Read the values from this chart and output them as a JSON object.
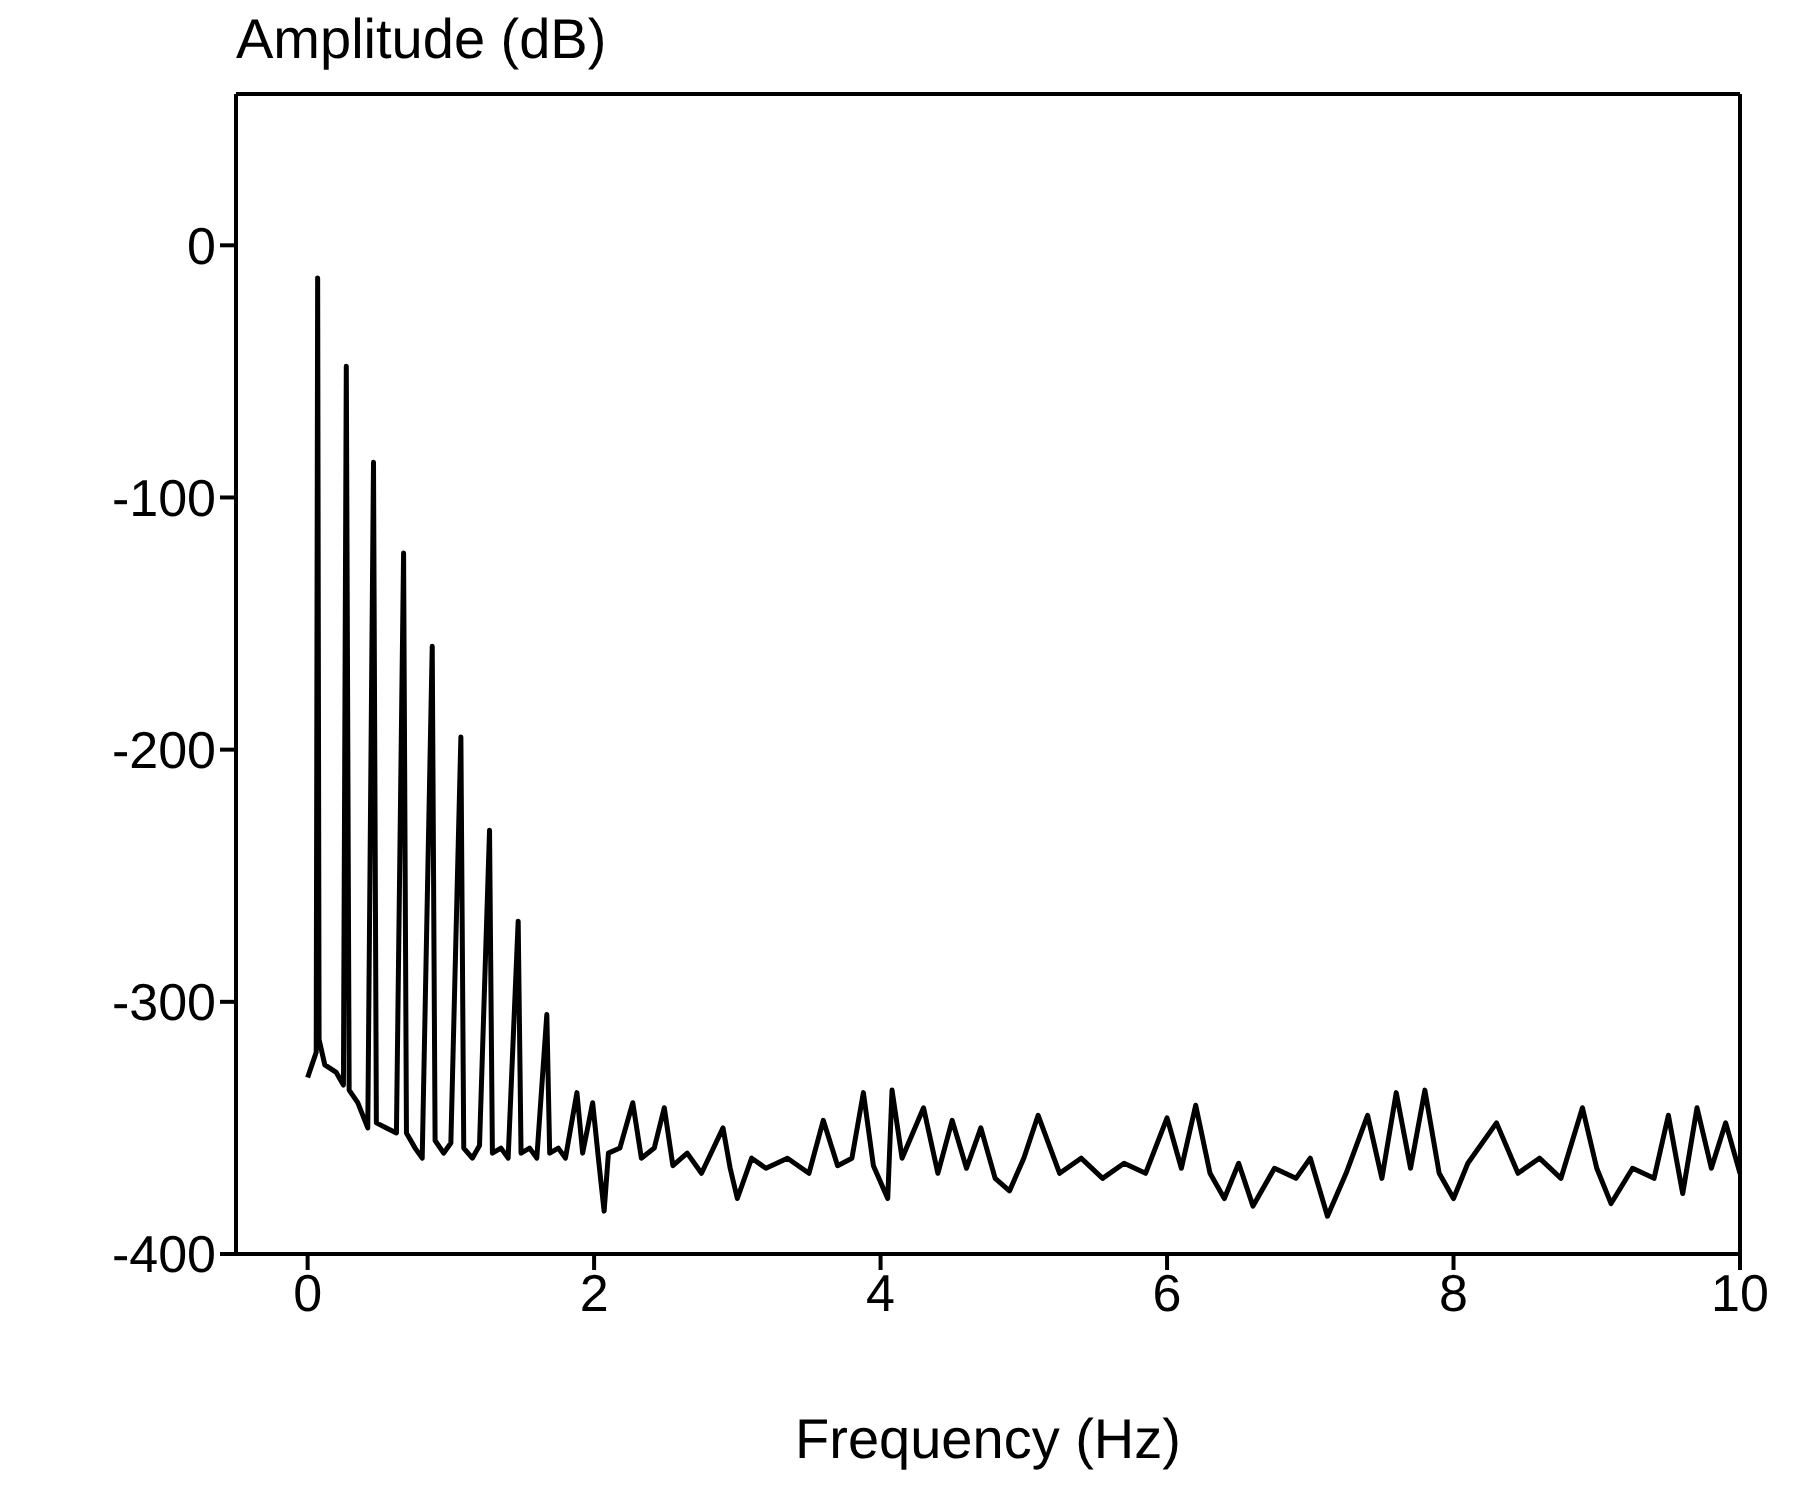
{
  "chart_data": {
    "type": "line",
    "xlabel": "Frequency (Hz)",
    "ylabel": "Amplitude (dB)",
    "xlim": [
      -0.5,
      10
    ],
    "ylim": [
      -400,
      60
    ],
    "xticks": [
      0,
      2,
      4,
      6,
      8,
      10
    ],
    "yticks": [
      -400,
      -300,
      -200,
      -100,
      0
    ],
    "marker": "none",
    "line_style": "solid",
    "series": [
      {
        "color": "#000000",
        "x": [
          0,
          0.03,
          0.06,
          0.07,
          0.08,
          0.12,
          0.2,
          0.25,
          0.27,
          0.29,
          0.35,
          0.42,
          0.46,
          0.48,
          0.55,
          0.62,
          0.67,
          0.69,
          0.75,
          0.8,
          0.87,
          0.89,
          0.95,
          1.0,
          1.07,
          1.09,
          1.15,
          1.2,
          1.27,
          1.29,
          1.35,
          1.4,
          1.47,
          1.49,
          1.55,
          1.6,
          1.67,
          1.69,
          1.75,
          1.8,
          1.88,
          1.92,
          1.99,
          2.03,
          2.07,
          2.1,
          2.18,
          2.27,
          2.33,
          2.42,
          2.49,
          2.55,
          2.65,
          2.75,
          2.9,
          2.95,
          3.0,
          3.1,
          3.2,
          3.35,
          3.5,
          3.6,
          3.7,
          3.8,
          3.88,
          3.95,
          4.05,
          4.08,
          4.15,
          4.3,
          4.4,
          4.5,
          4.6,
          4.7,
          4.8,
          4.9,
          5.0,
          5.1,
          5.25,
          5.4,
          5.55,
          5.7,
          5.85,
          6.0,
          6.1,
          6.2,
          6.3,
          6.4,
          6.5,
          6.6,
          6.75,
          6.9,
          7.0,
          7.12,
          7.25,
          7.4,
          7.5,
          7.6,
          7.7,
          7.8,
          7.9,
          8.0,
          8.1,
          8.3,
          8.45,
          8.6,
          8.75,
          8.9,
          9.0,
          9.1,
          9.25,
          9.4,
          9.5,
          9.6,
          9.7,
          9.8,
          9.9,
          10
        ],
        "values": [
          -330,
          -325,
          -320,
          -13,
          -315,
          -325,
          -328,
          -333,
          -48,
          -335,
          -340,
          -350,
          -86,
          -348,
          -350,
          -352,
          -122,
          -352,
          -358,
          -362,
          -159,
          -355,
          -360,
          -356,
          -195,
          -358,
          -362,
          -357,
          -232,
          -360,
          -358,
          -362,
          -268,
          -360,
          -358,
          -362,
          -305,
          -360,
          -358,
          -362,
          -336,
          -360,
          -340,
          -362,
          -383,
          -360,
          -358,
          -340,
          -362,
          -358,
          -342,
          -365,
          -360,
          -368,
          -350,
          -366,
          -378,
          -362,
          -366,
          -362,
          -368,
          -347,
          -365,
          -362,
          -336,
          -365,
          -378,
          -335,
          -362,
          -342,
          -368,
          -347,
          -366,
          -350,
          -370,
          -375,
          -362,
          -345,
          -368,
          -362,
          -370,
          -364,
          -368,
          -346,
          -366,
          -341,
          -368,
          -378,
          -364,
          -381,
          -366,
          -370,
          -362,
          -385,
          -368,
          -345,
          -370,
          -336,
          -366,
          -335,
          -368,
          -378,
          -364,
          -348,
          -368,
          -362,
          -370,
          -342,
          -366,
          -380,
          -366,
          -370,
          -345,
          -376,
          -342,
          -366,
          -348,
          -368
        ]
      }
    ]
  }
}
